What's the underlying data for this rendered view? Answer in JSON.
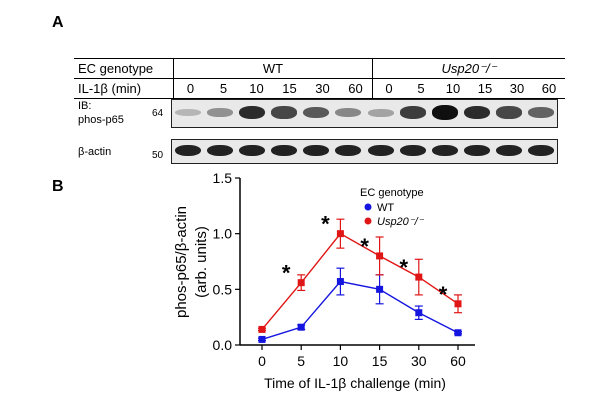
{
  "panel_a": {
    "letter": "A",
    "row1_label": "EC genotype",
    "row2_label": "IL-1β (min)",
    "genotype_wt": "WT",
    "genotype_ko": "Usp20⁻/⁻",
    "lanes_wt": [
      "0",
      "5",
      "10",
      "15",
      "30",
      "60"
    ],
    "lanes_ko": [
      "0",
      "5",
      "10",
      "15",
      "30",
      "60"
    ],
    "blot1_ib": "IB:",
    "blot1_label": "phos-p65",
    "blot1_mw": "64",
    "blot2_label": "β-actin",
    "blot2_mw": "50",
    "phos_intensity": [
      0.1,
      0.3,
      0.85,
      0.7,
      0.6,
      0.35,
      0.2,
      0.75,
      1.0,
      0.85,
      0.7,
      0.55
    ],
    "actin_intensity": [
      0.9,
      0.9,
      0.9,
      0.9,
      0.9,
      0.9,
      0.9,
      0.9,
      0.9,
      0.9,
      0.9,
      0.9
    ]
  },
  "panel_b": {
    "letter": "B"
  },
  "chart_data": {
    "type": "line",
    "ylabel_line1": "phos-p65/β-actin",
    "ylabel_line2": "(arb. units)",
    "xlabel": "Time of IL-1β challenge (min)",
    "categories": [
      "0",
      "5",
      "10",
      "15",
      "30",
      "60"
    ],
    "ylim": [
      0,
      1.5
    ],
    "yticks": [
      "0.0",
      "0.5",
      "1.0",
      "1.5"
    ],
    "legend_title": "EC genotype",
    "legend_position": "top-right",
    "series": [
      {
        "name": "WT",
        "color": "#1515e0",
        "values": [
          0.05,
          0.16,
          0.57,
          0.5,
          0.29,
          0.11
        ],
        "errors": [
          0.01,
          0.02,
          0.12,
          0.13,
          0.06,
          0.01
        ]
      },
      {
        "name": "Usp20⁻/⁻",
        "color": "#e01515",
        "values": [
          0.14,
          0.56,
          1.0,
          0.8,
          0.61,
          0.37
        ],
        "errors": [
          0.01,
          0.07,
          0.13,
          0.17,
          0.16,
          0.08
        ]
      }
    ],
    "significance_marker": "*",
    "significant_categories": [
      "5",
      "10",
      "15",
      "30",
      "60"
    ]
  }
}
